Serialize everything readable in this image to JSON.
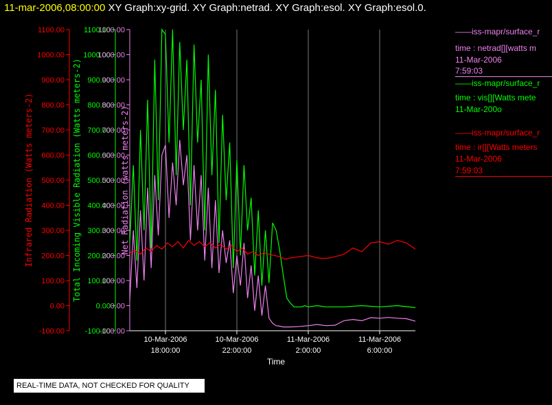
{
  "header": {
    "timestamp": "11-mar-2006,08:00:00",
    "graphs": "XY Graph:xy-grid.  XY Graph:netrad.  XY Graph:esol.  XY Graph:esol.0."
  },
  "colors": {
    "infrared": "#ff0000",
    "visible": "#00ff00",
    "net": "#ee82ee",
    "grid": "#ffffff",
    "background": "#000000"
  },
  "legend": {
    "net": {
      "line1": "——iss-mapr/surface_r",
      "line2": "time : netrad[][watts m",
      "line3": "11-Mar-2006",
      "line4": "7:59:03"
    },
    "visible": {
      "line1": "——iss-mapr/surface_r",
      "line2": "time : vis[][Watts mete",
      "line3": "11-Mar-200o"
    },
    "infrared": {
      "line1": "——iss-mapr/surface_r",
      "line2": "time : ir[][Watts meters",
      "line3": "11-Mar-2006",
      "line4": "7:59:03"
    }
  },
  "notice": "REAL-TIME DATA, NOT CHECKED FOR QUALITY",
  "chart_data": {
    "type": "line",
    "xlabel": "Time",
    "x_range": [
      "10-Mar-2006 16:00",
      "11-Mar-2006 08:00"
    ],
    "x_ticks": [
      {
        "date": "10-Mar-2006",
        "time": "18:00:00"
      },
      {
        "date": "10-Mar-2006",
        "time": "22:00:00"
      },
      {
        "date": "11-Mar-2006",
        "time": "2:00:00"
      },
      {
        "date": "11-Mar-2006",
        "time": "6:00:00"
      }
    ],
    "grid": "vertical lines at x ticks",
    "y_axes": [
      {
        "label": "Infrared Radiation (Watts meters-2)",
        "ylim": [
          -100,
          1100
        ],
        "ticks": [
          "1100.00",
          "1000.00",
          "900.00",
          "800.00",
          "700.00",
          "600.00",
          "500.00",
          "400.00",
          "300.00",
          "200.00",
          "100.00",
          "0.00",
          "-100.00"
        ]
      },
      {
        "label": "Total Incoming Visible Radiation (Watts meters-2)",
        "ylim": [
          -100,
          1100
        ],
        "ticks": [
          "1100.00",
          "1000.00",
          "900.00",
          "800.00",
          "700.00",
          "600.00",
          "500.00",
          "400.00",
          "300.00",
          "200.00",
          "100.00",
          "0.00",
          "-100.00"
        ]
      },
      {
        "label": "Net Radiation (watts meters-2)",
        "ylim": [
          -100,
          1100
        ],
        "ticks": [
          "1100.00",
          "1000.00",
          "900.00",
          "800.00",
          "700.00",
          "600.00",
          "500.00",
          "400.00",
          "300.00",
          "200.00",
          "100.00",
          "0.00",
          "-100.00"
        ]
      }
    ],
    "series": [
      {
        "key": "visible",
        "x_hours": [
          16.0,
          16.2,
          16.4,
          16.6,
          16.8,
          17.0,
          17.2,
          17.4,
          17.6,
          17.8,
          18.0,
          18.2,
          18.4,
          18.6,
          18.8,
          19.0,
          19.2,
          19.4,
          19.6,
          19.8,
          20.0,
          20.2,
          20.4,
          20.6,
          20.8,
          21.0,
          21.2,
          21.4,
          21.6,
          21.8,
          22.0,
          22.2,
          22.4,
          22.6,
          22.8,
          23.0,
          23.2,
          23.4,
          23.6,
          23.8,
          24.0,
          24.2,
          24.4,
          24.6,
          24.8,
          25.0,
          25.2,
          25.4,
          25.6,
          25.8,
          26.0,
          26.5,
          27.0,
          28.0,
          29.0,
          30.0,
          31.0,
          32.0
        ],
        "values": [
          250,
          560,
          180,
          700,
          300,
          820,
          230,
          980,
          420,
          1100,
          1080,
          650,
          1100,
          520,
          1050,
          700,
          980,
          400,
          1040,
          650,
          900,
          300,
          1000,
          520,
          860,
          250,
          760,
          420,
          650,
          150,
          580,
          200,
          560,
          300,
          430,
          120,
          380,
          80,
          300,
          90,
          330,
          300,
          220,
          120,
          30,
          10,
          -5,
          -5,
          -5,
          0,
          -5,
          0,
          -5,
          -5,
          0,
          -5,
          0,
          -8
        ]
      },
      {
        "key": "net",
        "x_hours": [
          16.0,
          16.2,
          16.4,
          16.6,
          16.8,
          17.0,
          17.2,
          17.4,
          17.6,
          17.8,
          18.0,
          18.2,
          18.4,
          18.6,
          18.8,
          19.0,
          19.2,
          19.4,
          19.6,
          19.8,
          20.0,
          20.2,
          20.4,
          20.6,
          20.8,
          21.0,
          21.2,
          21.4,
          21.6,
          21.8,
          22.0,
          22.2,
          22.4,
          22.6,
          22.8,
          23.0,
          23.2,
          23.4,
          23.6,
          23.8,
          24.0,
          24.2,
          24.4,
          24.6,
          25.0,
          25.5,
          26.0,
          26.5,
          27.0,
          27.5,
          28.0,
          28.5,
          29.0,
          29.5,
          30.0,
          30.5,
          31.0,
          31.5,
          32.0
        ],
        "values": [
          20,
          300,
          70,
          380,
          100,
          470,
          150,
          520,
          280,
          600,
          640,
          350,
          570,
          400,
          660,
          480,
          600,
          260,
          560,
          300,
          520,
          180,
          470,
          150,
          420,
          130,
          300,
          170,
          260,
          50,
          200,
          80,
          250,
          30,
          160,
          -20,
          120,
          -40,
          80,
          -50,
          -70,
          -80,
          -82,
          -85,
          -85,
          -83,
          -80,
          -75,
          -80,
          -78,
          -60,
          -55,
          -60,
          -48,
          -50,
          -47,
          -50,
          -52,
          -62
        ]
      },
      {
        "key": "infrared",
        "x_hours": [
          16.0,
          16.3,
          16.6,
          16.9,
          17.2,
          17.5,
          17.8,
          18.1,
          18.4,
          18.7,
          19.0,
          19.3,
          19.6,
          19.9,
          20.2,
          20.5,
          20.8,
          21.1,
          21.4,
          21.7,
          22.0,
          22.3,
          22.6,
          22.9,
          23.2,
          23.5,
          23.8,
          24.1,
          24.4,
          24.7,
          25.0,
          25.5,
          26.0,
          26.5,
          27.0,
          27.5,
          28.0,
          28.5,
          29.0,
          29.5,
          30.0,
          30.5,
          31.0,
          31.5,
          32.0
        ],
        "values": [
          210,
          220,
          205,
          230,
          215,
          240,
          225,
          250,
          235,
          255,
          230,
          260,
          240,
          255,
          235,
          250,
          230,
          245,
          225,
          240,
          215,
          230,
          205,
          215,
          200,
          210,
          205,
          200,
          195,
          185,
          190,
          195,
          200,
          190,
          188,
          195,
          205,
          230,
          215,
          250,
          255,
          245,
          260,
          250,
          225
        ]
      }
    ]
  }
}
